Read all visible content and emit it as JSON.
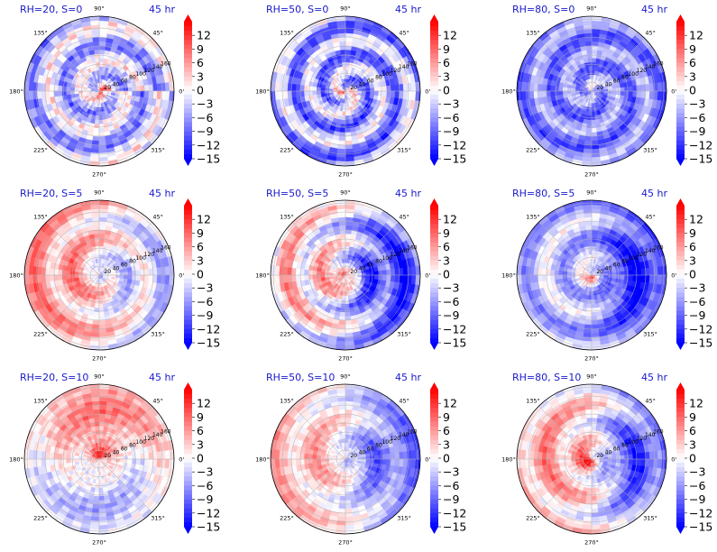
{
  "chart_data": [
    {
      "type": "heatmap",
      "projection": "polar",
      "panel_title": "RH=20, S=0",
      "time_label": "45 hr",
      "theta_ticks": [
        "90°",
        "45°",
        "0°",
        "315°",
        "270°",
        "225°",
        "180°",
        "135°"
      ],
      "radial_ticks": [
        "20",
        "40",
        "60",
        "80",
        "100",
        "120",
        "140",
        "160"
      ],
      "colorbar_ticks": [
        12,
        9,
        6,
        3,
        0,
        -3,
        -6,
        -9,
        -12,
        -15
      ],
      "clim": [
        -15,
        15
      ],
      "colormap": "bwr",
      "pattern": {
        "bg": -3.5,
        "spiral_sign": 1,
        "spiral_amp": 5,
        "core": 12,
        "core_angle": 0,
        "arms": 1.5,
        "twist": 2.2,
        "noise": 4
      }
    },
    {
      "type": "heatmap",
      "projection": "polar",
      "panel_title": "RH=50, S=0",
      "time_label": "45 hr",
      "theta_ticks": [
        "90°",
        "45°",
        "0°",
        "315°",
        "270°",
        "225°",
        "180°",
        "135°"
      ],
      "radial_ticks": [
        "20",
        "40",
        "60",
        "80",
        "100",
        "120",
        "140",
        "160"
      ],
      "colorbar_ticks": [
        12,
        9,
        6,
        3,
        0,
        -3,
        -6,
        -9,
        -12,
        -15
      ],
      "clim": [
        -15,
        15
      ],
      "colormap": "bwr",
      "pattern": {
        "bg": -5.5,
        "spiral_sign": 1,
        "spiral_amp": 6,
        "core": 11,
        "core_angle": 4.4,
        "arms": 2,
        "twist": 2.6,
        "noise": 3.5
      }
    },
    {
      "type": "heatmap",
      "projection": "polar",
      "panel_title": "RH=80, S=0",
      "time_label": "45 hr",
      "theta_ticks": [
        "90°",
        "45°",
        "0°",
        "315°",
        "270°",
        "225°",
        "180°",
        "135°"
      ],
      "radial_ticks": [
        "20",
        "40",
        "60",
        "80",
        "100",
        "120",
        "140",
        "160"
      ],
      "colorbar_ticks": [
        12,
        9,
        6,
        3,
        0,
        -3,
        -6,
        -9,
        -12,
        -15
      ],
      "clim": [
        -15,
        15
      ],
      "colormap": "bwr",
      "pattern": {
        "bg": -7,
        "spiral_sign": -1,
        "spiral_amp": 4,
        "core": 6,
        "core_angle": 1.6,
        "arms": 2,
        "twist": 2.4,
        "noise": 3
      }
    },
    {
      "type": "heatmap",
      "projection": "polar",
      "panel_title": "RH=20, S=5",
      "time_label": "45 hr",
      "theta_ticks": [
        "90°",
        "45°",
        "0°",
        "315°",
        "270°",
        "225°",
        "180°",
        "135°"
      ],
      "radial_ticks": [
        "20",
        "40",
        "60",
        "80",
        "100",
        "120",
        "140",
        "160"
      ],
      "colorbar_ticks": [
        12,
        9,
        6,
        3,
        0,
        -3,
        -6,
        -9,
        -12,
        -15
      ],
      "clim": [
        -15,
        15
      ],
      "colormap": "bwr",
      "pattern": {
        "bg": 2.5,
        "spiral_sign": 1,
        "spiral_amp": 4,
        "core": -10,
        "core_angle": 0.6,
        "arms": 1,
        "twist": 2.0,
        "noise": 2.5,
        "west": 3,
        "east": -5
      }
    },
    {
      "type": "heatmap",
      "projection": "polar",
      "panel_title": "RH=50, S=5",
      "time_label": "45 hr",
      "theta_ticks": [
        "90°",
        "45°",
        "0°",
        "315°",
        "270°",
        "225°",
        "180°",
        "135°"
      ],
      "radial_ticks": [
        "20",
        "40",
        "60",
        "80",
        "100",
        "120",
        "140",
        "160"
      ],
      "colorbar_ticks": [
        12,
        9,
        6,
        3,
        0,
        -3,
        -6,
        -9,
        -12,
        -15
      ],
      "clim": [
        -15,
        15
      ],
      "colormap": "bwr",
      "pattern": {
        "bg": -2,
        "spiral_sign": 1,
        "spiral_amp": 5,
        "core": 10,
        "core_angle": 3.6,
        "arms": 1,
        "twist": 2.2,
        "noise": 3,
        "west": 5,
        "east": -9
      }
    },
    {
      "type": "heatmap",
      "projection": "polar",
      "panel_title": "RH=80, S=5",
      "time_label": "45 hr",
      "theta_ticks": [
        "90°",
        "45°",
        "0°",
        "315°",
        "270°",
        "225°",
        "180°",
        "135°"
      ],
      "radial_ticks": [
        "20",
        "40",
        "60",
        "80",
        "100",
        "120",
        "140",
        "160"
      ],
      "colorbar_ticks": [
        12,
        9,
        6,
        3,
        0,
        -3,
        -6,
        -9,
        -12,
        -15
      ],
      "clim": [
        -15,
        15
      ],
      "colormap": "bwr",
      "pattern": {
        "bg": -4.5,
        "spiral_sign": -1,
        "spiral_amp": 4,
        "core": 13,
        "core_angle": 5.4,
        "arms": 1,
        "twist": 2.0,
        "noise": 2.5,
        "west": 1,
        "east": -8
      }
    },
    {
      "type": "heatmap",
      "projection": "polar",
      "panel_title": "RH=20, S=10",
      "time_label": "45 hr",
      "theta_ticks": [
        "90°",
        "45°",
        "0°",
        "315°",
        "270°",
        "225°",
        "180°",
        "135°"
      ],
      "radial_ticks": [
        "20",
        "40",
        "60",
        "80",
        "100",
        "120",
        "140",
        "160"
      ],
      "colorbar_ticks": [
        12,
        9,
        6,
        3,
        0,
        -3,
        -6,
        -9,
        -12,
        -15
      ],
      "clim": [
        -15,
        15
      ],
      "colormap": "bwr",
      "pattern": {
        "bg": 0.5,
        "spiral_sign": 1,
        "spiral_amp": 2,
        "core": 8,
        "core_angle": 2.4,
        "arms": 1,
        "twist": 1.5,
        "noise": 3,
        "north": 6,
        "south": -4
      }
    },
    {
      "type": "heatmap",
      "projection": "polar",
      "panel_title": "RH=50, S=10",
      "time_label": "45 hr",
      "theta_ticks": [
        "90°",
        "45°",
        "0°",
        "315°",
        "270°",
        "225°",
        "180°",
        "135°"
      ],
      "radial_ticks": [
        "20",
        "40",
        "60",
        "80",
        "100",
        "120",
        "140",
        "160"
      ],
      "colorbar_ticks": [
        12,
        9,
        6,
        3,
        0,
        -3,
        -6,
        -9,
        -12,
        -15
      ],
      "clim": [
        -15,
        15
      ],
      "colormap": "bwr",
      "pattern": {
        "bg": 0,
        "spiral_sign": 1,
        "spiral_amp": 3,
        "core": -6,
        "core_angle": 0.2,
        "arms": 1,
        "twist": 1.8,
        "noise": 2.5,
        "west": 4,
        "east": -8
      }
    },
    {
      "type": "heatmap",
      "projection": "polar",
      "panel_title": "RH=80, S=10",
      "time_label": "45 hr",
      "theta_ticks": [
        "90°",
        "45°",
        "0°",
        "315°",
        "270°",
        "225°",
        "180°",
        "135°"
      ],
      "radial_ticks": [
        "20",
        "40",
        "60",
        "80",
        "100",
        "120",
        "140",
        "160"
      ],
      "colorbar_ticks": [
        12,
        9,
        6,
        3,
        0,
        -3,
        -6,
        -9,
        -12,
        -15
      ],
      "clim": [
        -15,
        15
      ],
      "colormap": "bwr",
      "pattern": {
        "bg": 1,
        "spiral_sign": -1,
        "spiral_amp": 4,
        "core": 9,
        "core_angle": 4.6,
        "arms": 1,
        "twist": 2.0,
        "noise": 2.5,
        "west": 4,
        "east": -11
      }
    }
  ]
}
